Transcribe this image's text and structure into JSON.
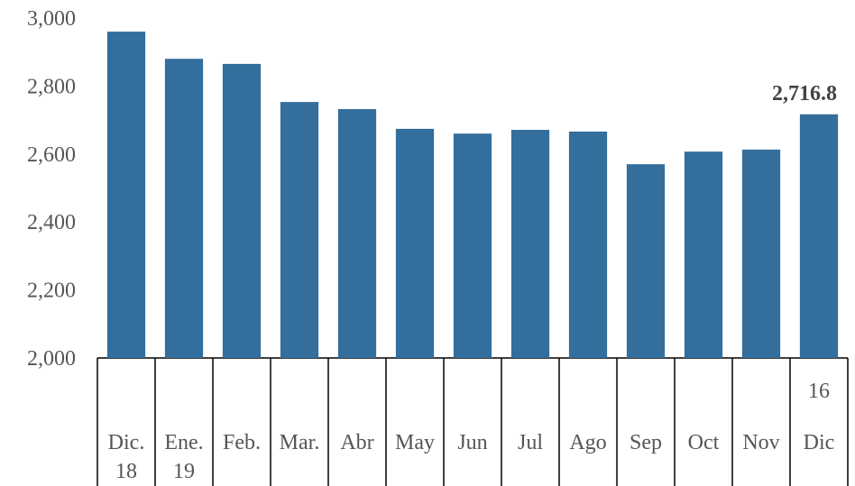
{
  "chart_data": {
    "type": "bar",
    "categories": [
      [
        "Dic.",
        "18"
      ],
      [
        "Ene.",
        "19"
      ],
      [
        "Feb."
      ],
      [
        "Mar."
      ],
      [
        "Abr"
      ],
      [
        "May"
      ],
      [
        "Jun"
      ],
      [
        "Jul"
      ],
      [
        "Ago"
      ],
      [
        "Sep"
      ],
      [
        "Oct"
      ],
      [
        "Nov"
      ],
      [
        "16",
        "Dic"
      ]
    ],
    "values": [
      2960,
      2880,
      2865,
      2753,
      2732,
      2674,
      2660,
      2671,
      2666,
      2570,
      2607,
      2613,
      2716.8
    ],
    "value_labels": [
      null,
      null,
      null,
      null,
      null,
      null,
      null,
      null,
      null,
      null,
      null,
      null,
      "2,716.8"
    ],
    "color": "#336e9c",
    "ylim": [
      2000,
      3000
    ],
    "yticks": [
      {
        "value": 2000,
        "label": "2,000"
      },
      {
        "value": 2200,
        "label": "2,200"
      },
      {
        "value": 2400,
        "label": "2,400"
      },
      {
        "value": 2600,
        "label": "2,600"
      },
      {
        "value": 2800,
        "label": "2,800"
      },
      {
        "value": 3000,
        "label": "3,000"
      }
    ],
    "grid": false
  }
}
